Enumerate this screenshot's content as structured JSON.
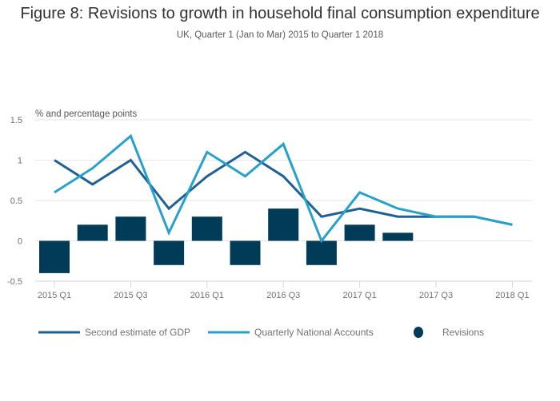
{
  "chart_data": {
    "type": "bar",
    "title": "Figure 8: Revisions to growth in household final consumption expenditure",
    "subtitle": "UK, Quarter 1 (Jan to Mar) 2015 to Quarter 1 2018",
    "ylabel": "% and percentage points",
    "xlabel": "",
    "ylim": [
      -0.5,
      1.5
    ],
    "yticks": [
      {
        "value": 1.5,
        "label": "1.5"
      },
      {
        "value": 1,
        "label": "1"
      },
      {
        "value": 0.5,
        "label": "0.5"
      },
      {
        "value": 0,
        "label": "0"
      },
      {
        "value": -0.5,
        "label": "-0.5"
      }
    ],
    "grid": true,
    "categories": [
      "2015 Q1",
      "2015 Q2",
      "2015 Q3",
      "2015 Q4",
      "2016 Q1",
      "2016 Q2",
      "2016 Q3",
      "2016 Q4",
      "2017 Q1",
      "2017 Q2",
      "2017 Q3",
      "2017 Q4",
      "2018 Q1"
    ],
    "xtick_labels": [
      {
        "index": 0,
        "label": "2015 Q1"
      },
      {
        "index": 2,
        "label": "2015 Q3"
      },
      {
        "index": 4,
        "label": "2016 Q1"
      },
      {
        "index": 6,
        "label": "2016 Q3"
      },
      {
        "index": 8,
        "label": "2017 Q1"
      },
      {
        "index": 10,
        "label": "2017 Q3"
      },
      {
        "index": 12,
        "label": "2018 Q1"
      }
    ],
    "series": [
      {
        "name": "Second estimate of GDP",
        "type": "line",
        "color": "#206095",
        "values": [
          1.0,
          0.7,
          1.0,
          0.4,
          0.8,
          1.1,
          0.8,
          0.3,
          0.4,
          0.3,
          0.3,
          0.3,
          0.2
        ]
      },
      {
        "name": "Quarterly National Accounts",
        "type": "line",
        "color": "#27a0cc",
        "values": [
          0.6,
          0.9,
          1.3,
          0.1,
          1.1,
          0.8,
          1.2,
          0.0,
          0.6,
          0.4,
          0.3,
          0.3,
          0.2
        ]
      },
      {
        "name": "Revisions",
        "type": "bar",
        "color": "#003c57",
        "values": [
          -0.4,
          0.2,
          0.3,
          -0.3,
          0.3,
          -0.3,
          0.4,
          -0.3,
          0.2,
          0.1,
          null,
          null,
          null
        ]
      }
    ],
    "legend_position": "bottom"
  }
}
